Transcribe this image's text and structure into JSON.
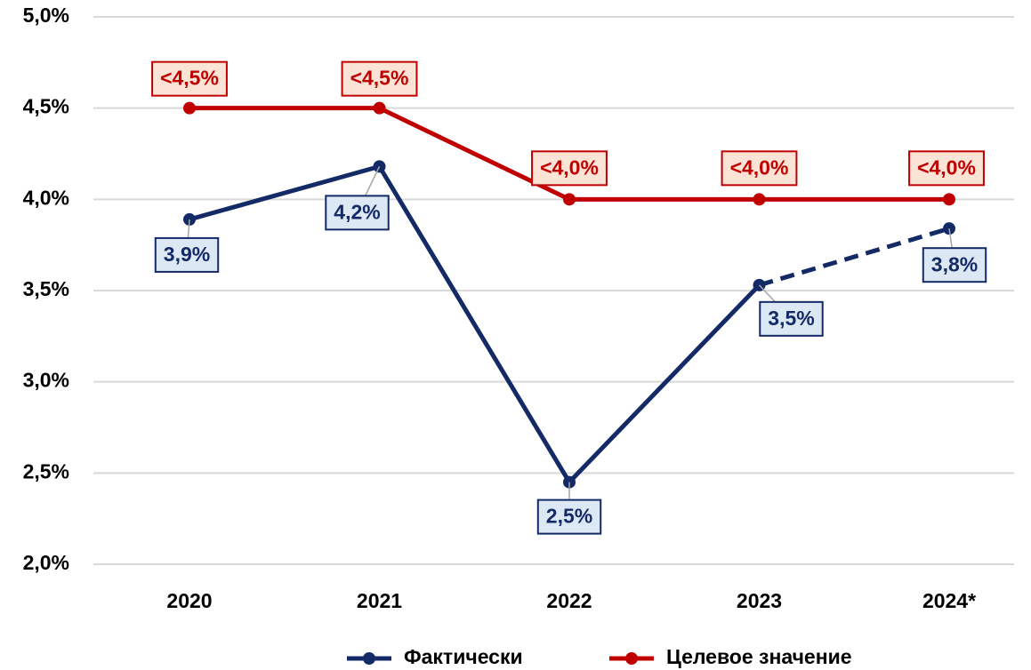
{
  "chart_data": {
    "type": "line",
    "categories": [
      "2020",
      "2021",
      "2022",
      "2023",
      "2024*"
    ],
    "series": [
      {
        "name": "Фактически",
        "color": "#142a66",
        "values": [
          3.89,
          4.18,
          2.45,
          3.53,
          3.84
        ],
        "value_labels": [
          "3,9%",
          "4,2%",
          "2,5%",
          "3,5%",
          "3,8%"
        ]
      },
      {
        "name": "Целевое значение",
        "color": "#c00000",
        "values": [
          4.5,
          4.5,
          4.0,
          4.0,
          4.0
        ],
        "value_labels": [
          "<4,5%",
          "<4,5%",
          "<4,0%",
          "<4,0%",
          "<4,0%"
        ]
      }
    ],
    "ylim": [
      2.0,
      5.0
    ],
    "yticks": [
      {
        "value": 2.0,
        "label": "2,0%"
      },
      {
        "value": 2.5,
        "label": "2,5%"
      },
      {
        "value": 3.0,
        "label": "3,0%"
      },
      {
        "value": 3.5,
        "label": "3,5%"
      },
      {
        "value": 4.0,
        "label": "4,0%"
      },
      {
        "value": 4.5,
        "label": "4,5%"
      },
      {
        "value": 5.0,
        "label": "5,0%"
      }
    ],
    "grid": true,
    "legend": "bottom"
  }
}
